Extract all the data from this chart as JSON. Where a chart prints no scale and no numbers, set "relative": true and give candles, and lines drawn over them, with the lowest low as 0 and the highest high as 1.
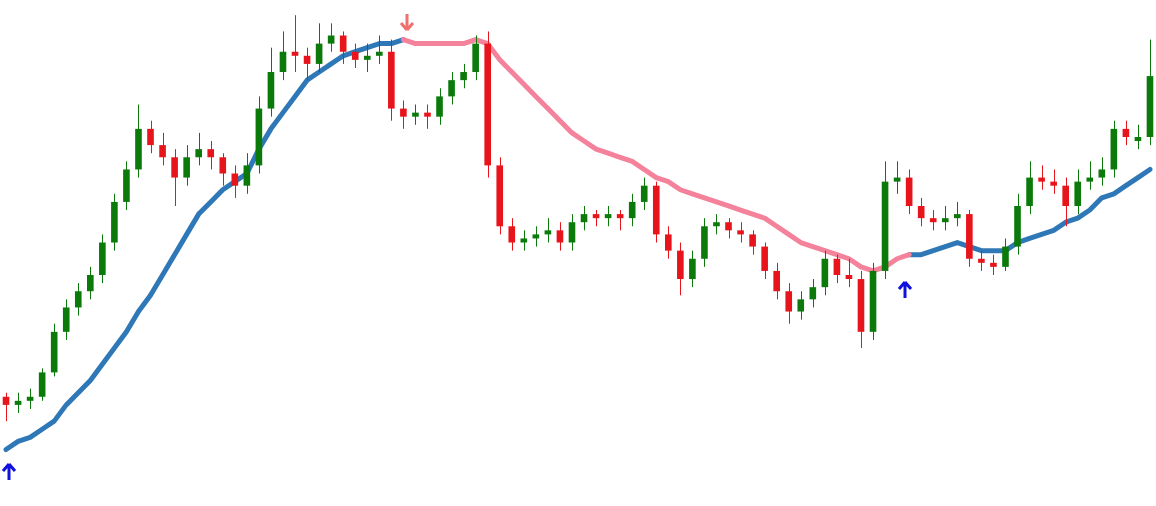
{
  "chart_data": {
    "type": "candlestick",
    "relative": true,
    "tick_labels": false,
    "categories": [
      null,
      null,
      null,
      null,
      null,
      null,
      null,
      null,
      null,
      null,
      null,
      null,
      null,
      null,
      null,
      null,
      null,
      null,
      null,
      null,
      null,
      null,
      null,
      null,
      null,
      null,
      null,
      null,
      null,
      null,
      null,
      null,
      null,
      null,
      null,
      null,
      null,
      null,
      null,
      null,
      null,
      null,
      null,
      null,
      null,
      null,
      null,
      null,
      null,
      null,
      null,
      null,
      null,
      null,
      null,
      null,
      null,
      null,
      null,
      null,
      null,
      null,
      null,
      null,
      null,
      null,
      null,
      null,
      null,
      null,
      null,
      null,
      null,
      null,
      null,
      null,
      null,
      null,
      null,
      null,
      null,
      null,
      null,
      null,
      null,
      null,
      null,
      null,
      null,
      null,
      null,
      null,
      null,
      null,
      null,
      null
    ],
    "ohlc": [
      [
        0.06,
        0.07,
        0.0,
        0.04
      ],
      [
        0.04,
        0.07,
        0.02,
        0.05
      ],
      [
        0.05,
        0.08,
        0.03,
        0.06
      ],
      [
        0.06,
        0.13,
        0.05,
        0.12
      ],
      [
        0.12,
        0.24,
        0.11,
        0.22
      ],
      [
        0.22,
        0.3,
        0.2,
        0.28
      ],
      [
        0.28,
        0.34,
        0.26,
        0.32
      ],
      [
        0.32,
        0.38,
        0.3,
        0.36
      ],
      [
        0.36,
        0.46,
        0.34,
        0.44
      ],
      [
        0.44,
        0.56,
        0.42,
        0.54
      ],
      [
        0.54,
        0.64,
        0.52,
        0.62
      ],
      [
        0.62,
        0.78,
        0.6,
        0.72
      ],
      [
        0.72,
        0.74,
        0.66,
        0.68
      ],
      [
        0.68,
        0.71,
        0.63,
        0.65
      ],
      [
        0.65,
        0.67,
        0.53,
        0.6
      ],
      [
        0.6,
        0.68,
        0.58,
        0.65
      ],
      [
        0.65,
        0.71,
        0.63,
        0.67
      ],
      [
        0.67,
        0.69,
        0.62,
        0.65
      ],
      [
        0.65,
        0.66,
        0.58,
        0.61
      ],
      [
        0.61,
        0.63,
        0.55,
        0.58
      ],
      [
        0.58,
        0.66,
        0.56,
        0.63
      ],
      [
        0.63,
        0.8,
        0.61,
        0.77
      ],
      [
        0.77,
        0.92,
        0.75,
        0.86
      ],
      [
        0.86,
        0.96,
        0.84,
        0.91
      ],
      [
        0.91,
        1.0,
        0.86,
        0.9
      ],
      [
        0.9,
        0.92,
        0.84,
        0.88
      ],
      [
        0.88,
        0.98,
        0.86,
        0.93
      ],
      [
        0.93,
        0.98,
        0.91,
        0.95
      ],
      [
        0.95,
        0.96,
        0.88,
        0.91
      ],
      [
        0.91,
        0.93,
        0.87,
        0.89
      ],
      [
        0.89,
        0.93,
        0.86,
        0.9
      ],
      [
        0.9,
        0.95,
        0.88,
        0.91
      ],
      [
        0.91,
        0.94,
        0.74,
        0.77
      ],
      [
        0.77,
        0.79,
        0.72,
        0.75
      ],
      [
        0.75,
        0.78,
        0.73,
        0.76
      ],
      [
        0.76,
        0.78,
        0.72,
        0.75
      ],
      [
        0.75,
        0.82,
        0.73,
        0.8
      ],
      [
        0.8,
        0.86,
        0.78,
        0.84
      ],
      [
        0.84,
        0.88,
        0.82,
        0.86
      ],
      [
        0.86,
        0.95,
        0.84,
        0.93
      ],
      [
        0.93,
        0.96,
        0.6,
        0.63
      ],
      [
        0.63,
        0.65,
        0.46,
        0.48
      ],
      [
        0.48,
        0.5,
        0.42,
        0.44
      ],
      [
        0.44,
        0.47,
        0.42,
        0.45
      ],
      [
        0.45,
        0.48,
        0.43,
        0.46
      ],
      [
        0.46,
        0.5,
        0.44,
        0.47
      ],
      [
        0.47,
        0.49,
        0.42,
        0.44
      ],
      [
        0.44,
        0.51,
        0.42,
        0.49
      ],
      [
        0.49,
        0.53,
        0.47,
        0.51
      ],
      [
        0.51,
        0.52,
        0.48,
        0.5
      ],
      [
        0.5,
        0.53,
        0.48,
        0.51
      ],
      [
        0.51,
        0.52,
        0.47,
        0.5
      ],
      [
        0.5,
        0.56,
        0.48,
        0.54
      ],
      [
        0.54,
        0.6,
        0.52,
        0.58
      ],
      [
        0.58,
        0.59,
        0.44,
        0.46
      ],
      [
        0.46,
        0.48,
        0.4,
        0.42
      ],
      [
        0.42,
        0.44,
        0.31,
        0.35
      ],
      [
        0.35,
        0.42,
        0.33,
        0.4
      ],
      [
        0.4,
        0.5,
        0.38,
        0.48
      ],
      [
        0.48,
        0.51,
        0.46,
        0.49
      ],
      [
        0.49,
        0.5,
        0.45,
        0.47
      ],
      [
        0.47,
        0.49,
        0.44,
        0.46
      ],
      [
        0.46,
        0.47,
        0.41,
        0.43
      ],
      [
        0.43,
        0.44,
        0.35,
        0.37
      ],
      [
        0.37,
        0.39,
        0.3,
        0.32
      ],
      [
        0.32,
        0.34,
        0.24,
        0.27
      ],
      [
        0.27,
        0.32,
        0.25,
        0.3
      ],
      [
        0.3,
        0.35,
        0.28,
        0.33
      ],
      [
        0.33,
        0.42,
        0.31,
        0.4
      ],
      [
        0.4,
        0.41,
        0.34,
        0.36
      ],
      [
        0.36,
        0.4,
        0.33,
        0.35
      ],
      [
        0.35,
        0.37,
        0.18,
        0.22
      ],
      [
        0.22,
        0.39,
        0.2,
        0.37
      ],
      [
        0.37,
        0.64,
        0.35,
        0.59
      ],
      [
        0.59,
        0.64,
        0.56,
        0.6
      ],
      [
        0.6,
        0.62,
        0.51,
        0.53
      ],
      [
        0.53,
        0.55,
        0.48,
        0.5
      ],
      [
        0.5,
        0.52,
        0.47,
        0.49
      ],
      [
        0.49,
        0.53,
        0.47,
        0.5
      ],
      [
        0.5,
        0.54,
        0.48,
        0.51
      ],
      [
        0.51,
        0.52,
        0.38,
        0.4
      ],
      [
        0.4,
        0.42,
        0.37,
        0.39
      ],
      [
        0.39,
        0.41,
        0.36,
        0.38
      ],
      [
        0.38,
        0.45,
        0.37,
        0.43
      ],
      [
        0.43,
        0.56,
        0.41,
        0.53
      ],
      [
        0.53,
        0.64,
        0.51,
        0.6
      ],
      [
        0.6,
        0.63,
        0.57,
        0.59
      ],
      [
        0.59,
        0.62,
        0.56,
        0.58
      ],
      [
        0.58,
        0.6,
        0.48,
        0.53
      ],
      [
        0.53,
        0.62,
        0.51,
        0.59
      ],
      [
        0.59,
        0.64,
        0.57,
        0.6
      ],
      [
        0.6,
        0.65,
        0.58,
        0.62
      ],
      [
        0.62,
        0.74,
        0.6,
        0.72
      ],
      [
        0.72,
        0.74,
        0.68,
        0.7
      ],
      [
        0.69,
        0.73,
        0.67,
        0.7
      ],
      [
        0.7,
        0.94,
        0.68,
        0.85
      ]
    ],
    "colors": [
      "#e8141c",
      "#0b7a0b",
      "#0b7a0b",
      "#0b7a0b",
      "#0b7a0b",
      "#0b7a0b",
      "#0b7a0b",
      "#0b7a0b",
      "#0b7a0b",
      "#0b7a0b",
      "#0b7a0b",
      "#0b7a0b",
      "#e8141c",
      "#e8141c",
      "#e8141c",
      "#0b7a0b",
      "#0b7a0b",
      "#e8141c",
      "#e8141c",
      "#e8141c",
      "#0b7a0b",
      "#0b7a0b",
      "#0b7a0b",
      "#0b7a0b",
      "#e8141c",
      "#e8141c",
      "#0b7a0b",
      "#0b7a0b",
      "#e8141c",
      "#e8141c",
      "#0b7a0b",
      "#0b7a0b",
      "#e8141c",
      "#e8141c",
      "#0b7a0b",
      "#e8141c",
      "#0b7a0b",
      "#0b7a0b",
      "#0b7a0b",
      "#0b7a0b",
      "#e8141c",
      "#e8141c",
      "#e8141c",
      "#0b7a0b",
      "#0b7a0b",
      "#0b7a0b",
      "#e8141c",
      "#0b7a0b",
      "#0b7a0b",
      "#e8141c",
      "#0b7a0b",
      "#e8141c",
      "#0b7a0b",
      "#0b7a0b",
      "#e8141c",
      "#e8141c",
      "#e8141c",
      "#0b7a0b",
      "#0b7a0b",
      "#0b7a0b",
      "#e8141c",
      "#e8141c",
      "#e8141c",
      "#e8141c",
      "#e8141c",
      "#e8141c",
      "#0b7a0b",
      "#0b7a0b",
      "#0b7a0b",
      "#e8141c",
      "#e8141c",
      "#e8141c",
      "#0b7a0b",
      "#0b7a0b",
      "#0b7a0b",
      "#e8141c",
      "#e8141c",
      "#e8141c",
      "#0b7a0b",
      "#0b7a0b",
      "#e8141c",
      "#e8141c",
      "#e8141c",
      "#0b7a0b",
      "#0b7a0b",
      "#0b7a0b",
      "#e8141c",
      "#e8141c",
      "#e8141c",
      "#0b7a0b",
      "#0b7a0b",
      "#0b7a0b",
      "#0b7a0b",
      "#e8141c",
      "#0b7a0b",
      "#0b7a0b"
    ],
    "series": [
      {
        "type": "line",
        "color": "#2f78b7",
        "values": [
          -0.07,
          -0.05,
          -0.04,
          -0.02,
          0,
          0.04,
          0.07,
          0.1,
          0.14,
          0.18,
          0.22,
          0.27,
          0.31,
          0.36,
          0.41,
          0.46,
          0.51,
          0.54,
          0.57,
          0.59,
          0.61,
          0.67,
          0.72,
          0.76,
          0.8,
          0.84,
          0.86,
          0.88,
          0.9,
          0.91,
          0.92,
          0.93,
          0.93,
          0.94,
          null,
          null,
          null,
          null,
          null,
          null,
          null,
          null,
          null,
          null,
          null,
          null,
          null,
          null,
          null,
          null,
          null,
          null,
          null,
          null,
          null,
          null,
          null,
          null,
          null,
          null,
          null,
          null,
          null,
          null,
          null,
          null,
          null,
          null,
          null,
          null,
          null,
          null,
          null,
          null,
          null,
          0.41,
          0.41,
          0.42,
          0.43,
          0.44,
          0.43,
          0.42,
          0.42,
          0.42,
          0.44,
          0.45,
          0.46,
          0.47,
          0.49,
          0.5,
          0.52,
          0.55,
          0.56,
          0.58,
          0.6,
          0.62
        ]
      },
      {
        "type": "line",
        "color": "#f4829b",
        "values": [
          null,
          null,
          null,
          null,
          null,
          null,
          null,
          null,
          null,
          null,
          null,
          null,
          null,
          null,
          null,
          null,
          null,
          null,
          null,
          null,
          null,
          null,
          null,
          null,
          null,
          null,
          null,
          null,
          null,
          null,
          null,
          null,
          null,
          0.94,
          0.93,
          0.93,
          0.93,
          0.93,
          0.93,
          0.94,
          0.93,
          0.89,
          0.86,
          0.83,
          0.8,
          0.77,
          0.74,
          0.71,
          0.69,
          0.67,
          0.66,
          0.65,
          0.64,
          0.62,
          0.6,
          0.59,
          0.57,
          0.56,
          0.55,
          0.54,
          0.53,
          0.52,
          0.51,
          0.5,
          0.48,
          0.46,
          0.44,
          0.43,
          0.42,
          0.41,
          0.4,
          0.38,
          0.37,
          0.38,
          0.4,
          0.41,
          null,
          null,
          null,
          null,
          null,
          null,
          null,
          null,
          null,
          null,
          null,
          null,
          null,
          null,
          null,
          null,
          null,
          null,
          null,
          null
        ]
      }
    ]
  }
}
